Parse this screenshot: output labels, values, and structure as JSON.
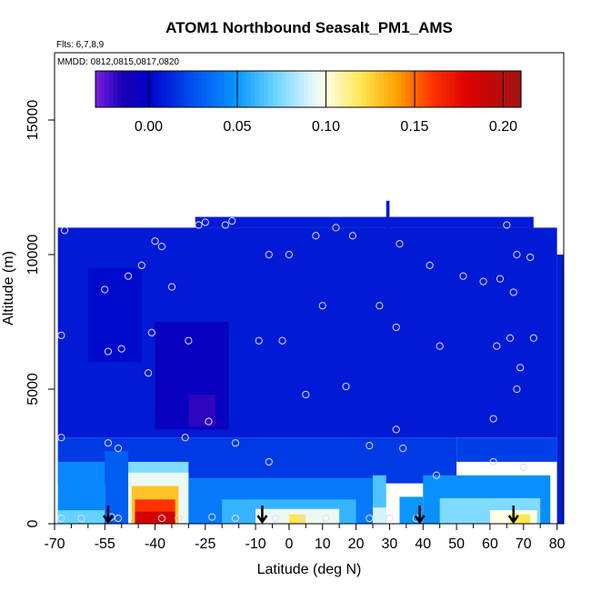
{
  "chart_data": {
    "type": "heatmap",
    "title": "ATOM1 Northbound Seasalt_PM1_AMS",
    "flights_label": "Flts: 6,7,8,9",
    "dates_label": "MMDD: 0812,0815,0817,0820",
    "xlabel": "Latitude (deg N)",
    "ylabel": "Altitude (m)",
    "xlim": [
      -70,
      82
    ],
    "ylim": [
      0,
      17500
    ],
    "x_ticks": [
      -70,
      -55,
      -40,
      -25,
      -10,
      0,
      10,
      20,
      30,
      40,
      50,
      60,
      70,
      80
    ],
    "x_minor_ticks": [
      -65,
      -60,
      -50,
      -45,
      -35,
      -30,
      -20,
      -15,
      -5,
      5,
      15,
      25,
      35,
      45,
      55,
      65,
      75
    ],
    "y_ticks": [
      0,
      5000,
      10000,
      15000
    ],
    "colorbar": {
      "min": -0.03,
      "max": 0.21,
      "ticks": [
        0.0,
        0.05,
        0.1,
        0.15,
        0.2
      ],
      "tick_labels": [
        "0.00",
        "0.05",
        "0.10",
        "0.15",
        "0.20"
      ],
      "stops": [
        {
          "v": -0.03,
          "color": "#7a1ee6"
        },
        {
          "v": -0.015,
          "color": "#1a00b4"
        },
        {
          "v": 0.0,
          "color": "#0000c8"
        },
        {
          "v": 0.025,
          "color": "#0050f0"
        },
        {
          "v": 0.05,
          "color": "#0a96ff"
        },
        {
          "v": 0.07,
          "color": "#64d2ff"
        },
        {
          "v": 0.09,
          "color": "#d8f2ff"
        },
        {
          "v": 0.1,
          "color": "#ffffe6"
        },
        {
          "v": 0.12,
          "color": "#ffe650"
        },
        {
          "v": 0.14,
          "color": "#ffa000"
        },
        {
          "v": 0.16,
          "color": "#ff3200"
        },
        {
          "v": 0.18,
          "color": "#dc0000"
        },
        {
          "v": 0.21,
          "color": "#a01414"
        }
      ]
    },
    "cells": [
      {
        "lat": [
          -69,
          80
        ],
        "alt": [
          3200,
          11000
        ],
        "value": 0.008
      },
      {
        "lat": [
          -28,
          73
        ],
        "alt": [
          11000,
          11400
        ],
        "value": 0.008
      },
      {
        "lat": [
          80,
          82
        ],
        "alt": [
          0,
          10000
        ],
        "value": 0.008
      },
      {
        "lat": [
          -40,
          -18
        ],
        "alt": [
          3500,
          7500
        ],
        "value": -0.006
      },
      {
        "lat": [
          -30,
          -22
        ],
        "alt": [
          3600,
          4800
        ],
        "value": -0.018
      },
      {
        "lat": [
          -60,
          -44
        ],
        "alt": [
          6000,
          9500
        ],
        "value": 0.003
      },
      {
        "lat": [
          29,
          30
        ],
        "alt": [
          11000,
          12000
        ],
        "value": 0.008
      },
      {
        "lat": [
          -69,
          50
        ],
        "alt": [
          1500,
          3200
        ],
        "value": 0.018
      },
      {
        "lat": [
          50,
          80
        ],
        "alt": [
          2300,
          3200
        ],
        "value": 0.02
      },
      {
        "lat": [
          -69,
          -55
        ],
        "alt": [
          0,
          2300
        ],
        "value": 0.045
      },
      {
        "lat": [
          -69,
          -55
        ],
        "alt": [
          0,
          500
        ],
        "value": 0.07
      },
      {
        "lat": [
          -55,
          -48
        ],
        "alt": [
          0,
          2700
        ],
        "value": 0.03
      },
      {
        "lat": [
          -48,
          -30
        ],
        "alt": [
          0,
          2300
        ],
        "value": 0.075
      },
      {
        "lat": [
          -48,
          -30
        ],
        "alt": [
          0,
          1900
        ],
        "value": 0.095
      },
      {
        "lat": [
          -47,
          -33
        ],
        "alt": [
          0,
          1400
        ],
        "value": 0.13
      },
      {
        "lat": [
          -46,
          -34
        ],
        "alt": [
          0,
          900
        ],
        "value": 0.16
      },
      {
        "lat": [
          -46,
          -34
        ],
        "alt": [
          0,
          450
        ],
        "value": 0.185
      },
      {
        "lat": [
          -30,
          25
        ],
        "alt": [
          0,
          1700
        ],
        "value": 0.04
      },
      {
        "lat": [
          -20,
          20
        ],
        "alt": [
          0,
          900
        ],
        "value": 0.06
      },
      {
        "lat": [
          -10,
          15
        ],
        "alt": [
          0,
          550
        ],
        "value": 0.095
      },
      {
        "lat": [
          0,
          5
        ],
        "alt": [
          0,
          350
        ],
        "value": 0.12
      },
      {
        "lat": [
          25,
          29
        ],
        "alt": [
          0,
          1800
        ],
        "value": 0.065
      },
      {
        "lat": [
          25,
          29
        ],
        "alt": [
          0,
          600
        ],
        "value": 0.09
      },
      {
        "lat": [
          33,
          40
        ],
        "alt": [
          0,
          1000
        ],
        "value": 0.05
      },
      {
        "lat": [
          40,
          78
        ],
        "alt": [
          0,
          1800
        ],
        "value": 0.048
      },
      {
        "lat": [
          45,
          75
        ],
        "alt": [
          0,
          950
        ],
        "value": 0.075
      },
      {
        "lat": [
          60,
          74
        ],
        "alt": [
          0,
          500
        ],
        "value": 0.1
      },
      {
        "lat": [
          66,
          72
        ],
        "alt": [
          0,
          350
        ],
        "value": 0.12
      }
    ],
    "observations": [
      [
        -67,
        10900
      ],
      [
        -68,
        7000
      ],
      [
        -68,
        3200
      ],
      [
        -68,
        200
      ],
      [
        -62,
        200
      ],
      [
        -55,
        8700
      ],
      [
        -54,
        6400
      ],
      [
        -54,
        3000
      ],
      [
        -53,
        250
      ],
      [
        -51,
        2800
      ],
      [
        -51,
        200
      ],
      [
        -50,
        6500
      ],
      [
        -48,
        9200
      ],
      [
        -44,
        9600
      ],
      [
        -41,
        7100
      ],
      [
        -42,
        5600
      ],
      [
        -40,
        10500
      ],
      [
        -38,
        10300
      ],
      [
        -38,
        200
      ],
      [
        -35,
        8800
      ],
      [
        -33,
        200
      ],
      [
        -31,
        3200
      ],
      [
        -30,
        6800
      ],
      [
        -27,
        11100
      ],
      [
        -25,
        11200
      ],
      [
        -24,
        3800
      ],
      [
        -23,
        250
      ],
      [
        -19,
        11100
      ],
      [
        -17,
        11250
      ],
      [
        -16,
        3000
      ],
      [
        -16,
        200
      ],
      [
        -9,
        6800
      ],
      [
        -6,
        2300
      ],
      [
        -6,
        10000
      ],
      [
        -4,
        200
      ],
      [
        -2,
        6800
      ],
      [
        0,
        10000
      ],
      [
        4,
        200
      ],
      [
        5,
        4800
      ],
      [
        8,
        10700
      ],
      [
        10,
        8100
      ],
      [
        11,
        200
      ],
      [
        14,
        11000
      ],
      [
        17,
        5100
      ],
      [
        19,
        10700
      ],
      [
        24,
        2900
      ],
      [
        24,
        200
      ],
      [
        27,
        8100
      ],
      [
        30,
        200
      ],
      [
        32,
        3500
      ],
      [
        32,
        7300
      ],
      [
        33,
        10400
      ],
      [
        34,
        2800
      ],
      [
        38,
        200
      ],
      [
        42,
        9600
      ],
      [
        44,
        1800
      ],
      [
        45,
        6600
      ],
      [
        52,
        9200
      ],
      [
        58,
        9000
      ],
      [
        61,
        2300
      ],
      [
        61,
        3900
      ],
      [
        62,
        6600
      ],
      [
        63,
        9100
      ],
      [
        65,
        11100
      ],
      [
        66,
        6900
      ],
      [
        67,
        8600
      ],
      [
        68,
        10000
      ],
      [
        68,
        5000
      ],
      [
        69,
        5800
      ],
      [
        70,
        2100
      ],
      [
        72,
        9900
      ],
      [
        73,
        6900
      ]
    ],
    "arrows_lat": [
      -54,
      -8,
      39,
      67
    ]
  }
}
